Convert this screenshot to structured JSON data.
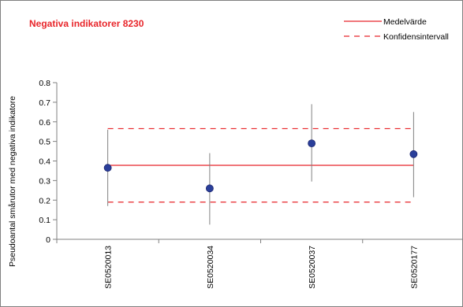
{
  "chart_data": {
    "type": "scatter",
    "title": "Negativa indikatorer 8230",
    "ylabel": "Pseudoantal smårutor med negativa indikatore",
    "xlabel": "",
    "categories": [
      "SE0520013",
      "SE0520034",
      "SE0520037",
      "SE0520177"
    ],
    "points": [
      {
        "x": "SE0520013",
        "y": 0.365,
        "err_low": 0.17,
        "err_high": 0.56
      },
      {
        "x": "SE0520034",
        "y": 0.26,
        "err_low": 0.075,
        "err_high": 0.44
      },
      {
        "x": "SE0520037",
        "y": 0.49,
        "err_low": 0.295,
        "err_high": 0.69
      },
      {
        "x": "SE0520177",
        "y": 0.435,
        "err_low": 0.215,
        "err_high": 0.65
      }
    ],
    "reference_lines": [
      {
        "name": "Medelvärde",
        "y": 0.378,
        "style": "solid"
      },
      {
        "name": "Konfidensintervall",
        "y": 0.565,
        "style": "dashed"
      },
      {
        "name": "Konfidensintervall",
        "y": 0.19,
        "style": "dashed"
      }
    ],
    "ylim": [
      0,
      0.8
    ],
    "yticks": [
      "0",
      "0.1",
      "0.2",
      "0.3",
      "0.4",
      "0.5",
      "0.6",
      "0.7",
      "0.8"
    ],
    "legend": [
      "Medelvärde",
      "Konfidensintervall"
    ],
    "legend_position": "top-right",
    "grid": false,
    "colors": {
      "title": "#e8252a",
      "reference": "#e8252a",
      "marker": "#2a3f9a",
      "marker_edge": "#1a2470",
      "errorbar": "#808080",
      "axis": "#808080"
    }
  }
}
